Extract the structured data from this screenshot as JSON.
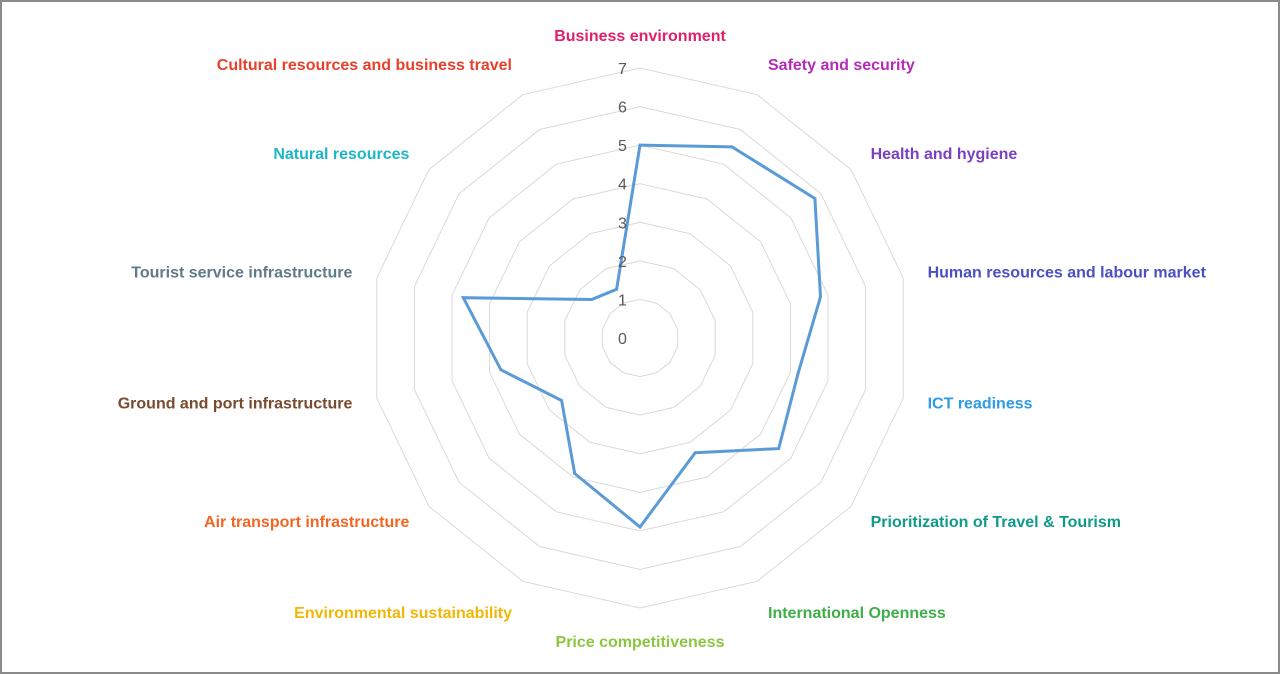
{
  "chart_data": {
    "type": "radar",
    "categories": [
      "Business environment",
      "Safety and security",
      "Health and hygiene",
      "Human resources and labour market",
      "ICT readiness",
      "Prioritization of Travel & Tourism",
      "International Openness",
      "Price competitiveness",
      "Environmental sustainability",
      "Air transport infrastructure",
      "Ground and port infrastructure",
      "Tourist service infrastructure",
      "Natural resources",
      "Cultural resources and business travel"
    ],
    "category_colors": [
      "#e0206a",
      "#b52ab8",
      "#7b3fc4",
      "#4a4fc4",
      "#2e9be6",
      "#0f9a8a",
      "#3fae49",
      "#8cc63f",
      "#f2b705",
      "#f26522",
      "#7a4a2e",
      "#5f7a8a",
      "#1fb5c9",
      "#e8402a"
    ],
    "series": [
      {
        "values": [
          5.0,
          5.5,
          5.8,
          4.8,
          4.2,
          4.6,
          3.3,
          4.9,
          3.9,
          2.6,
          3.7,
          4.7,
          1.6,
          1.4
        ],
        "color": "#5b9bd5"
      }
    ],
    "rlim": [
      0,
      7
    ],
    "ticks": [
      "0",
      "1",
      "2",
      "3",
      "4",
      "5",
      "6",
      "7"
    ],
    "grid": true,
    "grid_color": "#d9d9d9"
  }
}
